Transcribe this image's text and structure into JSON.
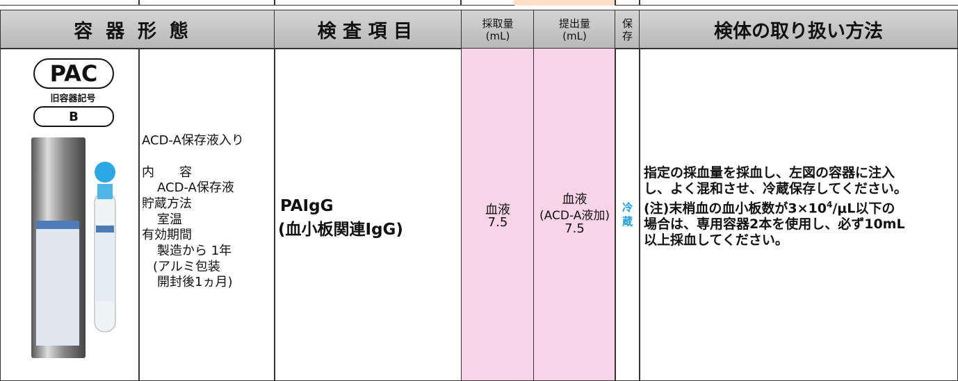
{
  "header": {
    "container": "容器形態",
    "test_item": "検査項目",
    "collection_volume": [
      "採取量",
      "(mL)"
    ],
    "submission_volume": [
      "提出量",
      "(mL)"
    ],
    "storage": [
      "保",
      "存"
    ],
    "handling": "検体の取り扱い方法"
  },
  "row": {
    "container_code": "PAC",
    "old_code_label": "旧容器記号",
    "old_code": "B",
    "description": [
      "ACD-A保存液入り",
      "内　　容",
      "ACD-A保存液",
      "貯蔵方法",
      "室温",
      "有効期間",
      "製造から 1年",
      "(アルミ包装",
      "開封後1ヵ月)"
    ],
    "test_item": [
      "PAIgG",
      "(血小板関連IgG)"
    ],
    "collection": [
      "血液",
      "7.5"
    ],
    "submission": [
      "血液",
      "(ACD-A液加)",
      "7.5"
    ],
    "storage": [
      "冷",
      "蔵"
    ],
    "handling": {
      "lines": [
        "指定の採血量を採血し、左図の容器に注入",
        "し、よく混和させ、冷蔵保存してください。",
        {
          "before": "(注)末梢血の血小板数が3×10",
          "sup": "4",
          "after": "/μL以下の"
        },
        "場合は、専用容器2本を使用し、必ず10mL",
        "以上採血してください。"
      ]
    }
  }
}
